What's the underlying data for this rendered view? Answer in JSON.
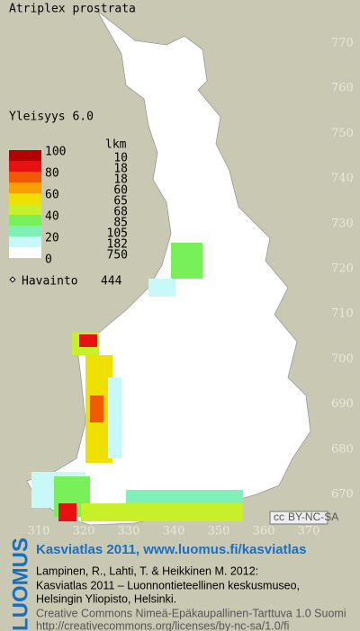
{
  "header": {
    "title": "Atriplex prostrata",
    "frequency": "Yleisyys  6.0"
  },
  "legend": {
    "count_heading": "lkm",
    "scale_labels": [
      100,
      80,
      60,
      40,
      20,
      0
    ],
    "counts": [
      10,
      18,
      18,
      60,
      65,
      68,
      85,
      105,
      182,
      750
    ],
    "colors": [
      "#b40000",
      "#e81010",
      "#f05a00",
      "#f8a000",
      "#f0e000",
      "#c8f028",
      "#78f05a",
      "#80f0b8",
      "#c8f8f8",
      "#ffffff"
    ],
    "observations_label": "Havainto",
    "observations": 444
  },
  "map": {
    "y_labels": [
      770,
      760,
      750,
      740,
      730,
      720,
      710,
      700,
      690,
      680,
      670
    ],
    "x_labels": [
      310,
      320,
      330,
      340,
      350,
      360,
      370
    ],
    "license_badge": [
      "cc",
      "BY-NC-SA"
    ]
  },
  "footer": {
    "logo": "LUOMUS",
    "headline": "Kasviatlas 2011, www.luomus.fi/kasviatlas",
    "citation": [
      "Lampinen, R., Lahti, T. & Heikkinen M. 2012:",
      "Kasviatlas 2011 – Luonnontieteellinen keskusmuseo,",
      "Helsingin Yliopisto, Helsinki."
    ],
    "license": [
      "Creative Commons Nimeä-Epäkaupallinen-Tarttuva 1.0 Suomi",
      "http://creativecommons.org/licenses/by-nc-sa/1.0/fi"
    ]
  }
}
